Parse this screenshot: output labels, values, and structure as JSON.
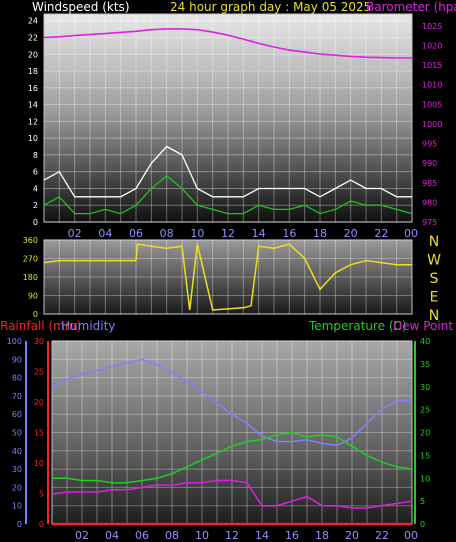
{
  "header": {
    "windspeed_label": "Windspeed (kts)",
    "graph_title": "24 hour graph day : May 05 2025",
    "barometer_label": "Barometer (hpa)"
  },
  "time_labels": [
    "02",
    "04",
    "06",
    "08",
    "10",
    "12",
    "14",
    "16",
    "18",
    "20",
    "22",
    "00"
  ],
  "direction_letters": [
    "N",
    "W",
    "S",
    "E",
    "N"
  ],
  "lower_header": {
    "rainfall_label": "Rainfall (mm)",
    "humidity_label": "Humidity",
    "temperature_label": "Temperature (C)",
    "dewpoint_label": "Dew Point (C)"
  },
  "colors": {
    "barometer": "#e020e0",
    "wind_avg": "#20c020",
    "wind_gust": "#ffffff",
    "direction": "#e8e020",
    "rain": "#ff2020",
    "humidity": "#8080ff",
    "temperature": "#20d020",
    "dewpoint": "#e020e0",
    "rain_bar": "#e8c020"
  },
  "chart_data": [
    {
      "type": "line",
      "title": "24 hour graph day : May 05 2025",
      "x_ticks": [
        "02",
        "04",
        "06",
        "08",
        "10",
        "12",
        "14",
        "16",
        "18",
        "20",
        "22",
        "00"
      ],
      "left_axis": {
        "label": "Windspeed (kts)",
        "ticks": [
          0,
          2,
          4,
          6,
          8,
          10,
          12,
          14,
          16,
          18,
          20,
          22,
          24
        ],
        "range": [
          0,
          24.8
        ]
      },
      "right_axis": {
        "label": "Barometer (hpa)",
        "ticks": [
          975,
          980,
          985,
          990,
          995,
          1000,
          1005,
          1010,
          1015,
          1020,
          1025
        ],
        "range": [
          975,
          1028
        ]
      },
      "grid": true,
      "series": [
        {
          "name": "Barometer",
          "axis": "right",
          "x": [
            0,
            1,
            2,
            3,
            4,
            5,
            6,
            7,
            8,
            9,
            10,
            11,
            12,
            13,
            14,
            15,
            16,
            17,
            18,
            19,
            20,
            21,
            22,
            23,
            24
          ],
          "values": [
            1022,
            1022.2,
            1022.5,
            1022.8,
            1023,
            1023.3,
            1023.6,
            1024,
            1024.2,
            1024.2,
            1024,
            1023.4,
            1022.6,
            1021.6,
            1020.5,
            1019.6,
            1018.8,
            1018.3,
            1017.8,
            1017.5,
            1017.2,
            1017,
            1016.9,
            1016.8,
            1016.8
          ]
        },
        {
          "name": "Wind speed",
          "x": [
            0,
            1,
            2,
            3,
            4,
            5,
            6,
            7,
            8,
            9,
            10,
            11,
            12,
            13,
            14,
            15,
            16,
            17,
            18,
            19,
            20,
            21,
            22,
            23,
            24
          ],
          "values": [
            2,
            3,
            1,
            1,
            1.5,
            1,
            2,
            4,
            5.5,
            4,
            2,
            1.5,
            1,
            1,
            2,
            1.5,
            1.5,
            2,
            1,
            1.5,
            2.5,
            2,
            2,
            1.5,
            1
          ]
        },
        {
          "name": "Gust",
          "x": [
            0,
            1,
            2,
            3,
            4,
            5,
            6,
            7,
            8,
            9,
            10,
            11,
            12,
            13,
            14,
            15,
            16,
            17,
            18,
            19,
            20,
            21,
            22,
            23,
            24
          ],
          "values": [
            5,
            6,
            3,
            3,
            3,
            3,
            4,
            7,
            9,
            8,
            4,
            3,
            3,
            3,
            4,
            4,
            4,
            4,
            3,
            4,
            5,
            4,
            4,
            3,
            3
          ]
        }
      ]
    },
    {
      "type": "line",
      "left_axis": {
        "ticks": [
          0,
          90,
          180,
          270,
          360
        ],
        "range": [
          0,
          360
        ]
      },
      "right_labels": [
        "N",
        "W",
        "S",
        "E",
        "N"
      ],
      "series": [
        {
          "name": "Wind direction",
          "x": [
            0,
            1,
            2,
            3,
            4,
            5,
            6,
            6.1,
            7,
            8,
            9,
            9.5,
            10,
            11,
            12,
            13,
            13.5,
            14,
            15,
            16,
            17,
            18,
            19,
            20,
            21,
            22,
            23,
            24
          ],
          "values": [
            250,
            260,
            260,
            260,
            260,
            260,
            260,
            340,
            330,
            320,
            330,
            20,
            340,
            20,
            25,
            30,
            40,
            330,
            320,
            340,
            270,
            120,
            200,
            240,
            260,
            250,
            240,
            240
          ]
        }
      ]
    },
    {
      "type": "line",
      "x_ticks": [
        "02",
        "04",
        "06",
        "08",
        "10",
        "12",
        "14",
        "16",
        "18",
        "20",
        "22",
        "00"
      ],
      "axes": {
        "rainfall": {
          "label": "Rainfall (mm)",
          "ticks": [
            0,
            5,
            10,
            15,
            20,
            25,
            30
          ],
          "range": [
            0,
            30
          ]
        },
        "humidity": {
          "label": "Humidity",
          "ticks": [
            0,
            10,
            20,
            30,
            40,
            50,
            60,
            70,
            80,
            90,
            100
          ],
          "range": [
            0,
            100
          ]
        },
        "temperature": {
          "label": "Temperature (C)",
          "ticks": [
            0,
            5,
            10,
            15,
            20,
            25,
            30,
            35,
            40
          ],
          "range": [
            0,
            40
          ]
        }
      },
      "grid": true,
      "series": [
        {
          "name": "Humidity",
          "axis": "humidity",
          "x": [
            0,
            1,
            2,
            3,
            4,
            5,
            6,
            7,
            8,
            9,
            10,
            11,
            12,
            13,
            14,
            15,
            16,
            17,
            18,
            19,
            20,
            21,
            22,
            23,
            24
          ],
          "values": [
            75,
            79,
            82,
            84,
            86,
            88,
            90,
            87,
            83,
            78,
            72,
            66,
            60,
            55,
            48,
            45,
            45,
            46,
            44,
            43,
            47,
            55,
            63,
            67,
            68
          ]
        },
        {
          "name": "Temperature",
          "axis": "temperature",
          "x": [
            0,
            1,
            2,
            3,
            4,
            5,
            6,
            7,
            8,
            9,
            10,
            11,
            12,
            13,
            14,
            15,
            16,
            17,
            18,
            19,
            20,
            21,
            22,
            23,
            24
          ],
          "values": [
            10,
            10,
            9.5,
            9.5,
            9,
            9,
            9.5,
            10,
            11,
            12.5,
            14,
            15.5,
            17,
            18,
            18.5,
            19.5,
            20,
            19,
            19.5,
            19,
            17,
            15,
            13.5,
            12.5,
            12
          ]
        },
        {
          "name": "Dew Point",
          "axis": "temperature",
          "x": [
            0,
            1,
            2,
            3,
            4,
            5,
            6,
            7,
            8,
            9,
            10,
            11,
            12,
            13,
            14,
            15,
            16,
            17,
            18,
            19,
            20,
            21,
            22,
            23,
            24
          ],
          "values": [
            6.5,
            7,
            7,
            7,
            7.5,
            7.5,
            8,
            8.5,
            8.5,
            9,
            9,
            9.5,
            9.5,
            9,
            4,
            4,
            5,
            6,
            4,
            4,
            3.5,
            3.5,
            4,
            4.5,
            5
          ]
        },
        {
          "name": "Rainfall",
          "axis": "rainfall",
          "x": [
            0,
            24
          ],
          "values": [
            0,
            0
          ]
        }
      ]
    }
  ]
}
